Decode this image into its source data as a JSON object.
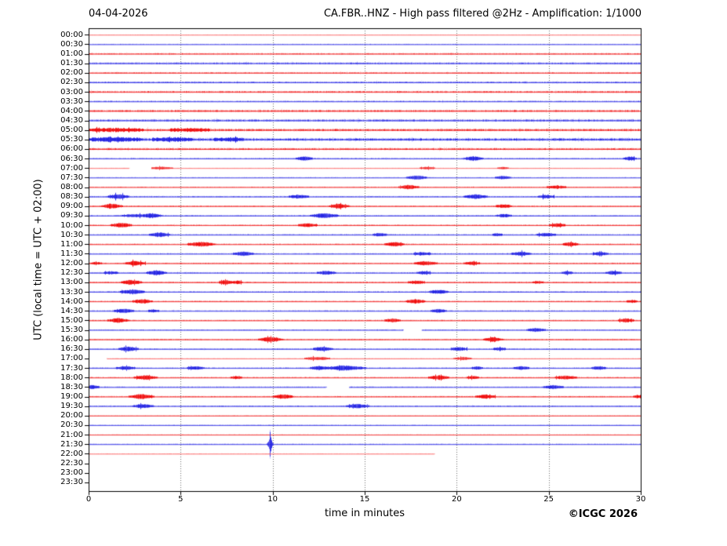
{
  "header": {
    "date": "04-04-2026",
    "title": "CA.FBR..HNZ - High pass filtered @2Hz - Amplification: 1/1000"
  },
  "axes": {
    "y_label": "UTC (local time = UTC + 02:00)",
    "x_label": "time in minutes"
  },
  "footer": {
    "copyright": "©ICGC 2026"
  },
  "colors": {
    "red_core": "#ee0000",
    "red_fringe": "#ff6666",
    "blue_core": "#1a1ae0",
    "blue_fringe": "#6666ff",
    "grid": "#6e6e6e",
    "frame": "#000000",
    "background": "#ffffff"
  },
  "chart_data": {
    "type": "line",
    "subtype": "helicorder-seismogram",
    "station": "CA.FBR..HNZ",
    "filter": "High pass filtered @2Hz",
    "amplification": "1/1000",
    "date": "04-04-2026",
    "x_range": [
      0,
      30
    ],
    "x_ticks": [
      0,
      5,
      10,
      15,
      20,
      25,
      30
    ],
    "grid_minutes": [
      5,
      10,
      15,
      20,
      25
    ],
    "minutes_per_row": 30,
    "row_time_step": "00:30",
    "legend": "red = traces starting on the hour, blue = traces starting on the half hour; amp = noise half-amplitude px, density = ink darkness, segments = minutes with data, events = [minute, extra amplitude px, width minutes]",
    "rows": [
      {
        "label": "00:00",
        "color": "red",
        "amp": 0.5,
        "density": 0.6,
        "segments": [
          [
            0,
            30
          ]
        ],
        "events": []
      },
      {
        "label": "00:30",
        "color": "blue",
        "amp": 0.9,
        "density": 0.8,
        "segments": [
          [
            0,
            30
          ]
        ],
        "events": []
      },
      {
        "label": "01:00",
        "color": "red",
        "amp": 1.3,
        "density": 1.0,
        "segments": [
          [
            0,
            30
          ]
        ],
        "events": []
      },
      {
        "label": "01:30",
        "color": "blue",
        "amp": 1.7,
        "density": 1.1,
        "segments": [
          [
            0,
            30
          ]
        ],
        "events": []
      },
      {
        "label": "02:00",
        "color": "red",
        "amp": 1.3,
        "density": 1.0,
        "segments": [
          [
            0,
            30
          ]
        ],
        "events": []
      },
      {
        "label": "02:30",
        "color": "blue",
        "amp": 1.5,
        "density": 1.1,
        "segments": [
          [
            0,
            30
          ]
        ],
        "events": []
      },
      {
        "label": "03:00",
        "color": "red",
        "amp": 1.7,
        "density": 1.1,
        "segments": [
          [
            0,
            30
          ]
        ],
        "events": []
      },
      {
        "label": "03:30",
        "color": "blue",
        "amp": 1.3,
        "density": 1.0,
        "segments": [
          [
            0,
            30
          ]
        ],
        "events": []
      },
      {
        "label": "04:00",
        "color": "red",
        "amp": 1.8,
        "density": 1.2,
        "segments": [
          [
            0,
            30
          ]
        ],
        "events": []
      },
      {
        "label": "04:30",
        "color": "blue",
        "amp": 1.9,
        "density": 1.2,
        "segments": [
          [
            0,
            30
          ]
        ],
        "events": []
      },
      {
        "label": "05:00",
        "color": "red",
        "amp": 2.0,
        "density": 1.3,
        "segments": [
          [
            0,
            30
          ]
        ],
        "events": [
          [
            1.5,
            1.2,
            1.0
          ],
          [
            5.5,
            1.0,
            0.8
          ]
        ]
      },
      {
        "label": "05:30",
        "color": "blue",
        "amp": 2.3,
        "density": 1.4,
        "segments": [
          [
            0,
            30
          ]
        ],
        "events": [
          [
            1.3,
            1.6,
            0.9
          ],
          [
            4.6,
            1.2,
            0.7
          ],
          [
            7.6,
            1.0,
            0.6
          ]
        ]
      },
      {
        "label": "06:00",
        "color": "red",
        "amp": 1.8,
        "density": 1.2,
        "segments": [
          [
            0,
            30
          ]
        ],
        "events": []
      },
      {
        "label": "06:30",
        "color": "blue",
        "amp": 1.2,
        "density": 1.0,
        "segments": [
          [
            0,
            30
          ]
        ],
        "events": [
          [
            11.7,
            2.2,
            0.25
          ],
          [
            20.9,
            2.2,
            0.3
          ],
          [
            29.4,
            2.0,
            0.2
          ]
        ]
      },
      {
        "label": "07:00",
        "color": "red",
        "amp": 0.5,
        "density": 0.55,
        "segments": [
          [
            0,
            2.2
          ],
          [
            3.4,
            30
          ]
        ],
        "events": [
          [
            3.9,
            1.6,
            0.4
          ],
          [
            18.4,
            1.7,
            0.25
          ],
          [
            22.5,
            1.3,
            0.2
          ]
        ]
      },
      {
        "label": "07:30",
        "color": "blue",
        "amp": 0.9,
        "density": 0.8,
        "segments": [
          [
            0,
            30
          ]
        ],
        "events": [
          [
            17.8,
            2.6,
            0.3
          ],
          [
            22.5,
            1.8,
            0.25
          ]
        ]
      },
      {
        "label": "08:00",
        "color": "red",
        "amp": 0.9,
        "density": 0.9,
        "segments": [
          [
            0,
            30
          ]
        ],
        "events": [
          [
            17.4,
            2.6,
            0.3
          ],
          [
            25.4,
            1.8,
            0.3
          ]
        ]
      },
      {
        "label": "08:30",
        "color": "blue",
        "amp": 1.1,
        "density": 1.0,
        "segments": [
          [
            0,
            30
          ]
        ],
        "events": [
          [
            1.6,
            2.8,
            0.3
          ],
          [
            11.4,
            2.0,
            0.3
          ],
          [
            21.0,
            2.4,
            0.35
          ],
          [
            24.85,
            1.8,
            0.25
          ]
        ]
      },
      {
        "label": "09:00",
        "color": "red",
        "amp": 1.1,
        "density": 1.0,
        "segments": [
          [
            0,
            30
          ]
        ],
        "events": [
          [
            1.25,
            2.8,
            0.3
          ],
          [
            13.6,
            2.6,
            0.3
          ],
          [
            22.55,
            1.8,
            0.25
          ]
        ]
      },
      {
        "label": "09:30",
        "color": "blue",
        "amp": 1.1,
        "density": 1.0,
        "segments": [
          [
            0,
            30
          ]
        ],
        "events": [
          [
            2.4,
            1.4,
            0.4
          ],
          [
            3.4,
            2.6,
            0.3
          ],
          [
            12.8,
            2.8,
            0.4
          ],
          [
            22.55,
            1.8,
            0.25
          ]
        ]
      },
      {
        "label": "10:00",
        "color": "red",
        "amp": 1.1,
        "density": 1.0,
        "segments": [
          [
            0,
            30
          ]
        ],
        "events": [
          [
            1.75,
            2.6,
            0.3
          ],
          [
            11.9,
            2.0,
            0.3
          ],
          [
            25.45,
            2.0,
            0.25
          ]
        ]
      },
      {
        "label": "10:30",
        "color": "blue",
        "amp": 1.1,
        "density": 1.0,
        "segments": [
          [
            0,
            30
          ]
        ],
        "events": [
          [
            3.85,
            2.6,
            0.3
          ],
          [
            15.8,
            1.6,
            0.25
          ],
          [
            22.2,
            1.2,
            0.2
          ],
          [
            24.85,
            2.0,
            0.3
          ]
        ]
      },
      {
        "label": "11:00",
        "color": "red",
        "amp": 1.1,
        "density": 1.0,
        "segments": [
          [
            0,
            30
          ]
        ],
        "events": [
          [
            6.1,
            2.6,
            0.4
          ],
          [
            16.6,
            2.2,
            0.3
          ],
          [
            26.15,
            2.0,
            0.25
          ]
        ]
      },
      {
        "label": "11:30",
        "color": "blue",
        "amp": 1.1,
        "density": 1.0,
        "segments": [
          [
            0,
            30
          ]
        ],
        "events": [
          [
            8.4,
            2.6,
            0.3
          ],
          [
            18.1,
            1.6,
            0.3
          ],
          [
            23.5,
            2.0,
            0.3
          ],
          [
            27.8,
            1.8,
            0.25
          ]
        ]
      },
      {
        "label": "12:00",
        "color": "red",
        "amp": 1.1,
        "density": 1.0,
        "segments": [
          [
            0,
            30
          ]
        ],
        "events": [
          [
            0.4,
            1.2,
            0.2
          ],
          [
            2.5,
            2.6,
            0.3
          ],
          [
            18.3,
            2.2,
            0.35
          ],
          [
            20.8,
            1.8,
            0.25
          ]
        ]
      },
      {
        "label": "12:30",
        "color": "blue",
        "amp": 1.1,
        "density": 1.0,
        "segments": [
          [
            0,
            30
          ]
        ],
        "events": [
          [
            1.2,
            1.4,
            0.25
          ],
          [
            3.65,
            2.6,
            0.3
          ],
          [
            12.9,
            2.0,
            0.3
          ],
          [
            18.2,
            1.4,
            0.25
          ],
          [
            26.0,
            1.4,
            0.2
          ],
          [
            28.5,
            2.0,
            0.25
          ]
        ]
      },
      {
        "label": "13:00",
        "color": "red",
        "amp": 1.2,
        "density": 1.05,
        "segments": [
          [
            0,
            30
          ]
        ],
        "events": [
          [
            2.3,
            2.6,
            0.3
          ],
          [
            7.45,
            2.4,
            0.2
          ],
          [
            8.1,
            1.6,
            0.15
          ],
          [
            17.8,
            1.4,
            0.3
          ],
          [
            24.4,
            1.2,
            0.2
          ]
        ]
      },
      {
        "label": "13:30",
        "color": "blue",
        "amp": 1.2,
        "density": 1.05,
        "segments": [
          [
            0,
            30
          ]
        ],
        "events": [
          [
            2.35,
            2.6,
            0.35
          ],
          [
            19.0,
            2.0,
            0.3
          ]
        ]
      },
      {
        "label": "14:00",
        "color": "red",
        "amp": 1.1,
        "density": 1.0,
        "segments": [
          [
            0,
            30
          ]
        ],
        "events": [
          [
            2.9,
            2.4,
            0.3
          ],
          [
            17.75,
            2.4,
            0.3
          ],
          [
            29.5,
            1.2,
            0.2
          ]
        ]
      },
      {
        "label": "14:30",
        "color": "blue",
        "amp": 1.1,
        "density": 1.0,
        "segments": [
          [
            0,
            30
          ]
        ],
        "events": [
          [
            1.9,
            2.4,
            0.3
          ],
          [
            3.5,
            1.2,
            0.2
          ],
          [
            19.0,
            2.0,
            0.25
          ]
        ]
      },
      {
        "label": "15:00",
        "color": "red",
        "amp": 1.1,
        "density": 1.0,
        "segments": [
          [
            0,
            30
          ]
        ],
        "events": [
          [
            1.6,
            2.6,
            0.3
          ],
          [
            16.5,
            2.0,
            0.25
          ],
          [
            29.2,
            2.0,
            0.25
          ]
        ]
      },
      {
        "label": "15:30",
        "color": "blue",
        "amp": 1.0,
        "density": 0.95,
        "segments": [
          [
            0,
            17.1
          ],
          [
            18.1,
            30
          ]
        ],
        "events": [
          [
            24.3,
            2.0,
            0.3
          ]
        ]
      },
      {
        "label": "16:00",
        "color": "red",
        "amp": 1.1,
        "density": 1.0,
        "segments": [
          [
            0,
            30
          ]
        ],
        "events": [
          [
            9.85,
            2.6,
            0.35
          ],
          [
            21.95,
            2.2,
            0.3
          ]
        ]
      },
      {
        "label": "16:30",
        "color": "blue",
        "amp": 1.1,
        "density": 1.0,
        "segments": [
          [
            0,
            30
          ]
        ],
        "events": [
          [
            2.15,
            2.4,
            0.3
          ],
          [
            12.7,
            2.2,
            0.3
          ],
          [
            20.1,
            2.0,
            0.25
          ],
          [
            22.3,
            1.6,
            0.2
          ]
        ]
      },
      {
        "label": "17:00",
        "color": "red",
        "amp": 0.6,
        "density": 0.6,
        "segments": [
          [
            1.0,
            30
          ]
        ],
        "events": [
          [
            12.1,
            1.6,
            0.25
          ],
          [
            12.7,
            1.6,
            0.25
          ],
          [
            20.3,
            1.8,
            0.3
          ]
        ]
      },
      {
        "label": "17:30",
        "color": "blue",
        "amp": 1.1,
        "density": 1.0,
        "segments": [
          [
            0,
            30
          ]
        ],
        "events": [
          [
            2.0,
            1.8,
            0.3
          ],
          [
            5.8,
            1.4,
            0.3
          ],
          [
            12.45,
            2.0,
            0.25
          ],
          [
            13.9,
            2.8,
            0.6
          ],
          [
            21.1,
            1.4,
            0.2
          ],
          [
            23.5,
            1.8,
            0.25
          ],
          [
            27.7,
            1.6,
            0.25
          ]
        ]
      },
      {
        "label": "18:00",
        "color": "red",
        "amp": 1.1,
        "density": 1.0,
        "segments": [
          [
            0,
            30
          ]
        ],
        "events": [
          [
            3.05,
            2.4,
            0.35
          ],
          [
            8.0,
            1.4,
            0.2
          ],
          [
            19.0,
            2.4,
            0.3
          ],
          [
            20.85,
            1.6,
            0.2
          ],
          [
            25.9,
            2.0,
            0.35
          ]
        ]
      },
      {
        "label": "18:30",
        "color": "blue",
        "amp": 1.1,
        "density": 1.0,
        "segments": [
          [
            0,
            12.9
          ],
          [
            14.15,
            30
          ]
        ],
        "events": [
          [
            0.2,
            2.2,
            0.2
          ],
          [
            25.25,
            2.0,
            0.3
          ]
        ]
      },
      {
        "label": "19:00",
        "color": "red",
        "amp": 1.1,
        "density": 1.0,
        "segments": [
          [
            0,
            30
          ]
        ],
        "events": [
          [
            2.85,
            2.8,
            0.35
          ],
          [
            10.55,
            2.4,
            0.3
          ],
          [
            21.55,
            2.2,
            0.3
          ],
          [
            29.9,
            1.6,
            0.2
          ]
        ]
      },
      {
        "label": "19:30",
        "color": "blue",
        "amp": 1.1,
        "density": 1.0,
        "segments": [
          [
            0,
            30
          ]
        ],
        "events": [
          [
            2.95,
            2.4,
            0.3
          ],
          [
            14.6,
            2.2,
            0.35
          ]
        ]
      },
      {
        "label": "20:00",
        "color": "red",
        "amp": 0.7,
        "density": 0.7,
        "segments": [
          [
            0,
            30
          ]
        ],
        "events": []
      },
      {
        "label": "20:30",
        "color": "blue",
        "amp": 0.9,
        "density": 0.8,
        "segments": [
          [
            0,
            30
          ]
        ],
        "events": []
      },
      {
        "label": "21:00",
        "color": "red",
        "amp": 0.7,
        "density": 0.7,
        "segments": [
          [
            0,
            30
          ]
        ],
        "events": []
      },
      {
        "label": "21:30",
        "color": "blue",
        "amp": 1.0,
        "density": 0.85,
        "segments": [
          [
            0,
            30
          ]
        ],
        "events": [
          [
            9.85,
            11.0,
            0.07
          ]
        ]
      },
      {
        "label": "22:00",
        "color": "red",
        "amp": 0.55,
        "density": 0.6,
        "segments": [
          [
            0,
            18.8
          ]
        ],
        "events": []
      },
      {
        "label": "22:30",
        "color": "blue",
        "amp": 0,
        "density": 0,
        "segments": [],
        "events": []
      },
      {
        "label": "23:00",
        "color": "red",
        "amp": 0,
        "density": 0,
        "segments": [],
        "events": []
      },
      {
        "label": "23:30",
        "color": "blue",
        "amp": 0,
        "density": 0,
        "segments": [],
        "events": []
      }
    ]
  }
}
